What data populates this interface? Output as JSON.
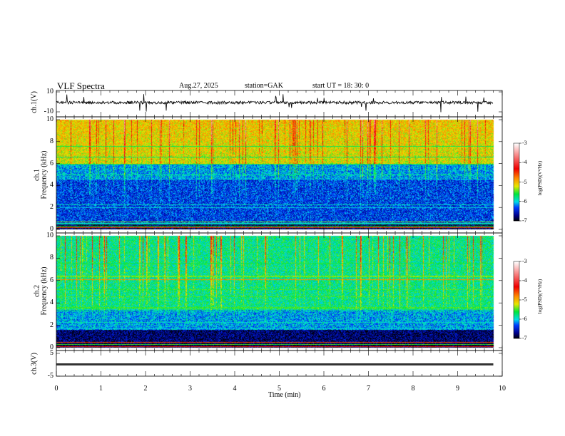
{
  "header": {
    "title": "VLF  Spectra",
    "date": "Aug.27, 2025",
    "station": "station=GAK",
    "start": "start  UT =   18: 30: 0"
  },
  "chart_data": {
    "type": "heatmap",
    "title": "VLF  Spectra",
    "xlabel": "Time  (min)",
    "xlim": [
      0,
      10
    ],
    "x_ticks": [
      "0",
      "1",
      "2",
      "3",
      "4",
      "5",
      "6",
      "7",
      "8",
      "9",
      "10"
    ],
    "data_end_min": 9.8,
    "panels": [
      {
        "name": "ch1-waveform",
        "ylabel": "ch.1(V)",
        "ylim": [
          -10,
          10
        ],
        "y_ticks": [
          "10",
          "-10"
        ],
        "type": "line"
      },
      {
        "name": "ch1-spectrogram",
        "ylabel_top": "ch.1",
        "ylabel": "Frequency  (kHz)",
        "ylim": [
          0,
          10
        ],
        "y_ticks": [
          "0",
          "2",
          "4",
          "6",
          "8",
          "10"
        ],
        "type": "heatmap",
        "colorbar": {
          "label": "log(PSD)(V²/Hz)",
          "range": [
            -7,
            -3
          ],
          "ticks": [
            "-3",
            "-4",
            "-5",
            "-6",
            "-7"
          ]
        }
      },
      {
        "name": "ch2-spectrogram",
        "ylabel_top": "ch.2",
        "ylabel": "Frequency  (kHz)",
        "ylim": [
          0,
          10
        ],
        "y_ticks": [
          "0",
          "2",
          "4",
          "6",
          "8",
          "10"
        ],
        "type": "heatmap",
        "colorbar": {
          "label": "log(PSD)(V²/Hz)",
          "range": [
            -7,
            -3
          ],
          "ticks": [
            "-3",
            "-4",
            "-5",
            "-6",
            "-7"
          ]
        }
      },
      {
        "name": "ch3-waveform",
        "ylabel": "ch.3(V)",
        "ylim": [
          -5,
          5
        ],
        "y_ticks": [
          "5",
          "-5"
        ],
        "type": "line",
        "approx_level": -1.8
      }
    ]
  }
}
